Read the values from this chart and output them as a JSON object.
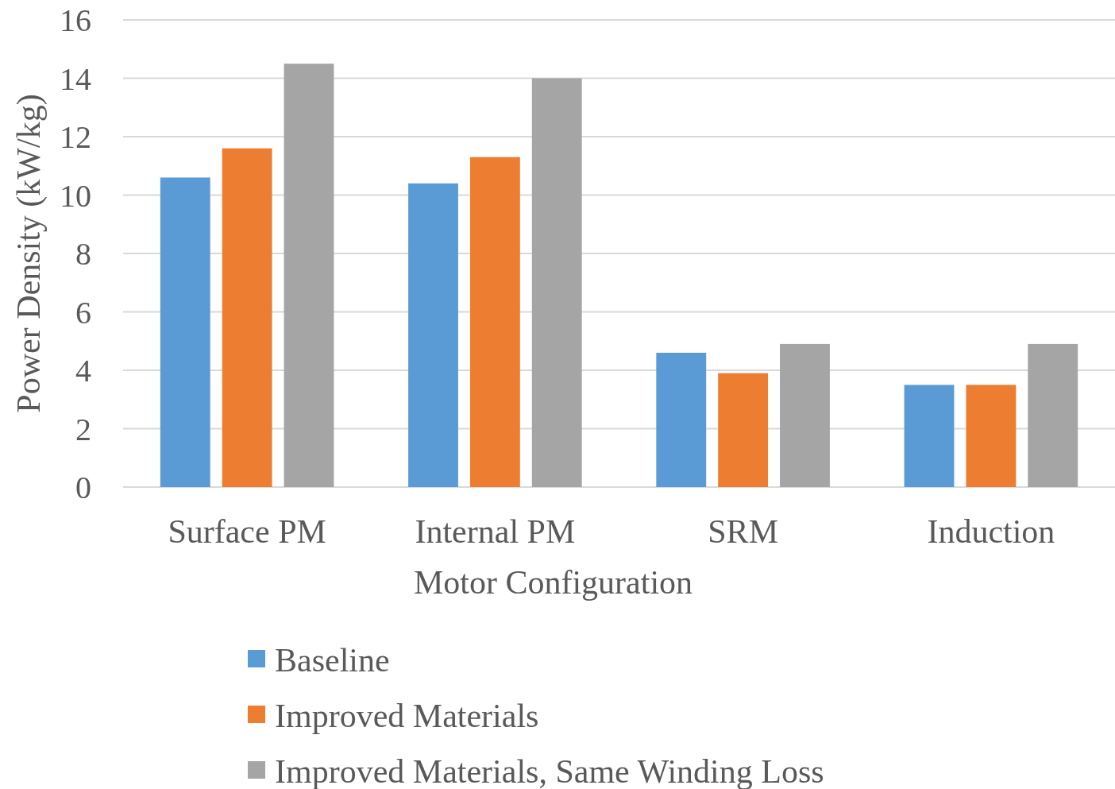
{
  "chart_data": {
    "type": "bar",
    "xlabel": "Motor Configuration",
    "ylabel": "Power Density (kW/kg)",
    "categories": [
      "Surface PM",
      "Internal PM",
      "SRM",
      "Induction"
    ],
    "series": [
      {
        "name": "Baseline",
        "color": "#5b9bd5",
        "values": [
          10.6,
          10.4,
          4.6,
          3.5
        ]
      },
      {
        "name": "Improved Materials",
        "color": "#ed7d31",
        "values": [
          11.6,
          11.3,
          3.9,
          3.5
        ]
      },
      {
        "name": "Improved Materials, Same Winding Loss",
        "color": "#a5a5a5",
        "values": [
          14.5,
          14.0,
          4.9,
          4.9
        ]
      }
    ],
    "ylim": [
      0,
      16
    ],
    "yticks": [
      0,
      2,
      4,
      6,
      8,
      10,
      12,
      14,
      16
    ],
    "grid": "y",
    "legend": "bottom"
  }
}
